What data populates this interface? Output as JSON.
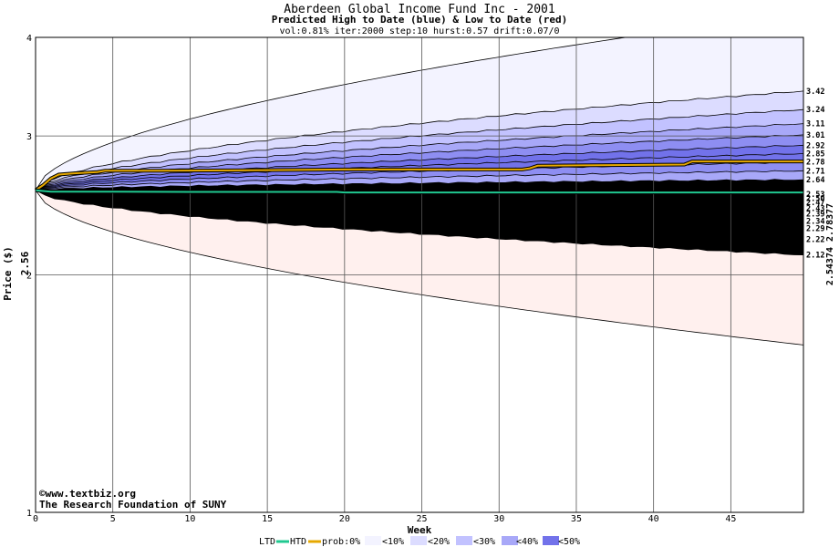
{
  "chart_data": {
    "type": "area",
    "title": "Aberdeen Global Income Fund Inc - 2001",
    "subtitle": "Predicted High to Date (blue) &  Low to Date (red)",
    "params": "vol:0.81% iter:2000 step:10 hurst:0.57 drift:0.07/0",
    "xlabel": "Week",
    "ylabel": "Price ($)",
    "x_ticks": [
      0,
      5,
      10,
      15,
      20,
      25,
      30,
      35,
      40,
      45
    ],
    "y_ticks": [
      1,
      2,
      3,
      4
    ],
    "xlim": [
      0,
      49.7
    ],
    "ylim": [
      1,
      4
    ],
    "y_scale": "log",
    "start_price": 2.56,
    "start_price_label": "2.56",
    "right_values": "2.54374 2.78377",
    "credit": "©www.textbiz.org",
    "credit2": "The Research Foundation of SUNY",
    "high_levels": [
      "3.42",
      "3.24",
      "3.11",
      "3.01",
      "2.92",
      "2.85",
      "2.78",
      "2.71",
      "2.64"
    ],
    "high_values": [
      3.42,
      3.24,
      3.11,
      3.01,
      2.92,
      2.85,
      2.78,
      2.71,
      2.64
    ],
    "mid_levels": [
      "2.53",
      "2.50",
      "2.47"
    ],
    "mid_values": [
      2.53,
      2.5,
      2.47
    ],
    "low_levels": [
      "2.43",
      "2.39",
      "2.34",
      "2.29",
      "2.22",
      "2.12"
    ],
    "low_values": [
      2.43,
      2.39,
      2.34,
      2.29,
      2.22,
      2.12
    ],
    "outer_high_end": 4.3,
    "outer_low_end": 1.63,
    "htd_series": [
      [
        0,
        2.56
      ],
      [
        0.5,
        2.6
      ],
      [
        1,
        2.65
      ],
      [
        1.5,
        2.68
      ],
      [
        2.5,
        2.69
      ],
      [
        4,
        2.7
      ],
      [
        4.5,
        2.71
      ],
      [
        8,
        2.71
      ],
      [
        15,
        2.715
      ],
      [
        20,
        2.72
      ],
      [
        31.5,
        2.72
      ],
      [
        32,
        2.73
      ],
      [
        32.5,
        2.75
      ],
      [
        42,
        2.76
      ],
      [
        42.5,
        2.785
      ],
      [
        49.7,
        2.785
      ]
    ],
    "ltd_series": [
      [
        0,
        2.56
      ],
      [
        0.5,
        2.555
      ],
      [
        1,
        2.55
      ],
      [
        3,
        2.55
      ],
      [
        10,
        2.548
      ],
      [
        19.5,
        2.548
      ],
      [
        20,
        2.544
      ],
      [
        49.7,
        2.544
      ]
    ],
    "colors": {
      "prob_0": "#f3f3ff",
      "prob_10": "#dcdcff",
      "prob_20": "#c2c2ff",
      "prob_30": "#a8a8f8",
      "prob_40": "#8e8ef2",
      "prob_50": "#7272ea",
      "low_0": "#fff0ee",
      "low_10": "#ffdcdc",
      "low_20": "#ffc4c4",
      "low_30": "#f8acac",
      "low_40": "#f09494",
      "low_50": "#e67b7b",
      "htd": "#e6a800",
      "ltd": "#20c890",
      "right_values": "#999a2a"
    },
    "legend": {
      "ltd": "LTD",
      "htd": "HTD",
      "prob": "prob:0%",
      "p10": "<10%",
      "p20": "<20%",
      "p30": "<30%",
      "p40": "<40%",
      "p50": "<50%"
    },
    "legend_placement": "bottom",
    "grid": true
  }
}
